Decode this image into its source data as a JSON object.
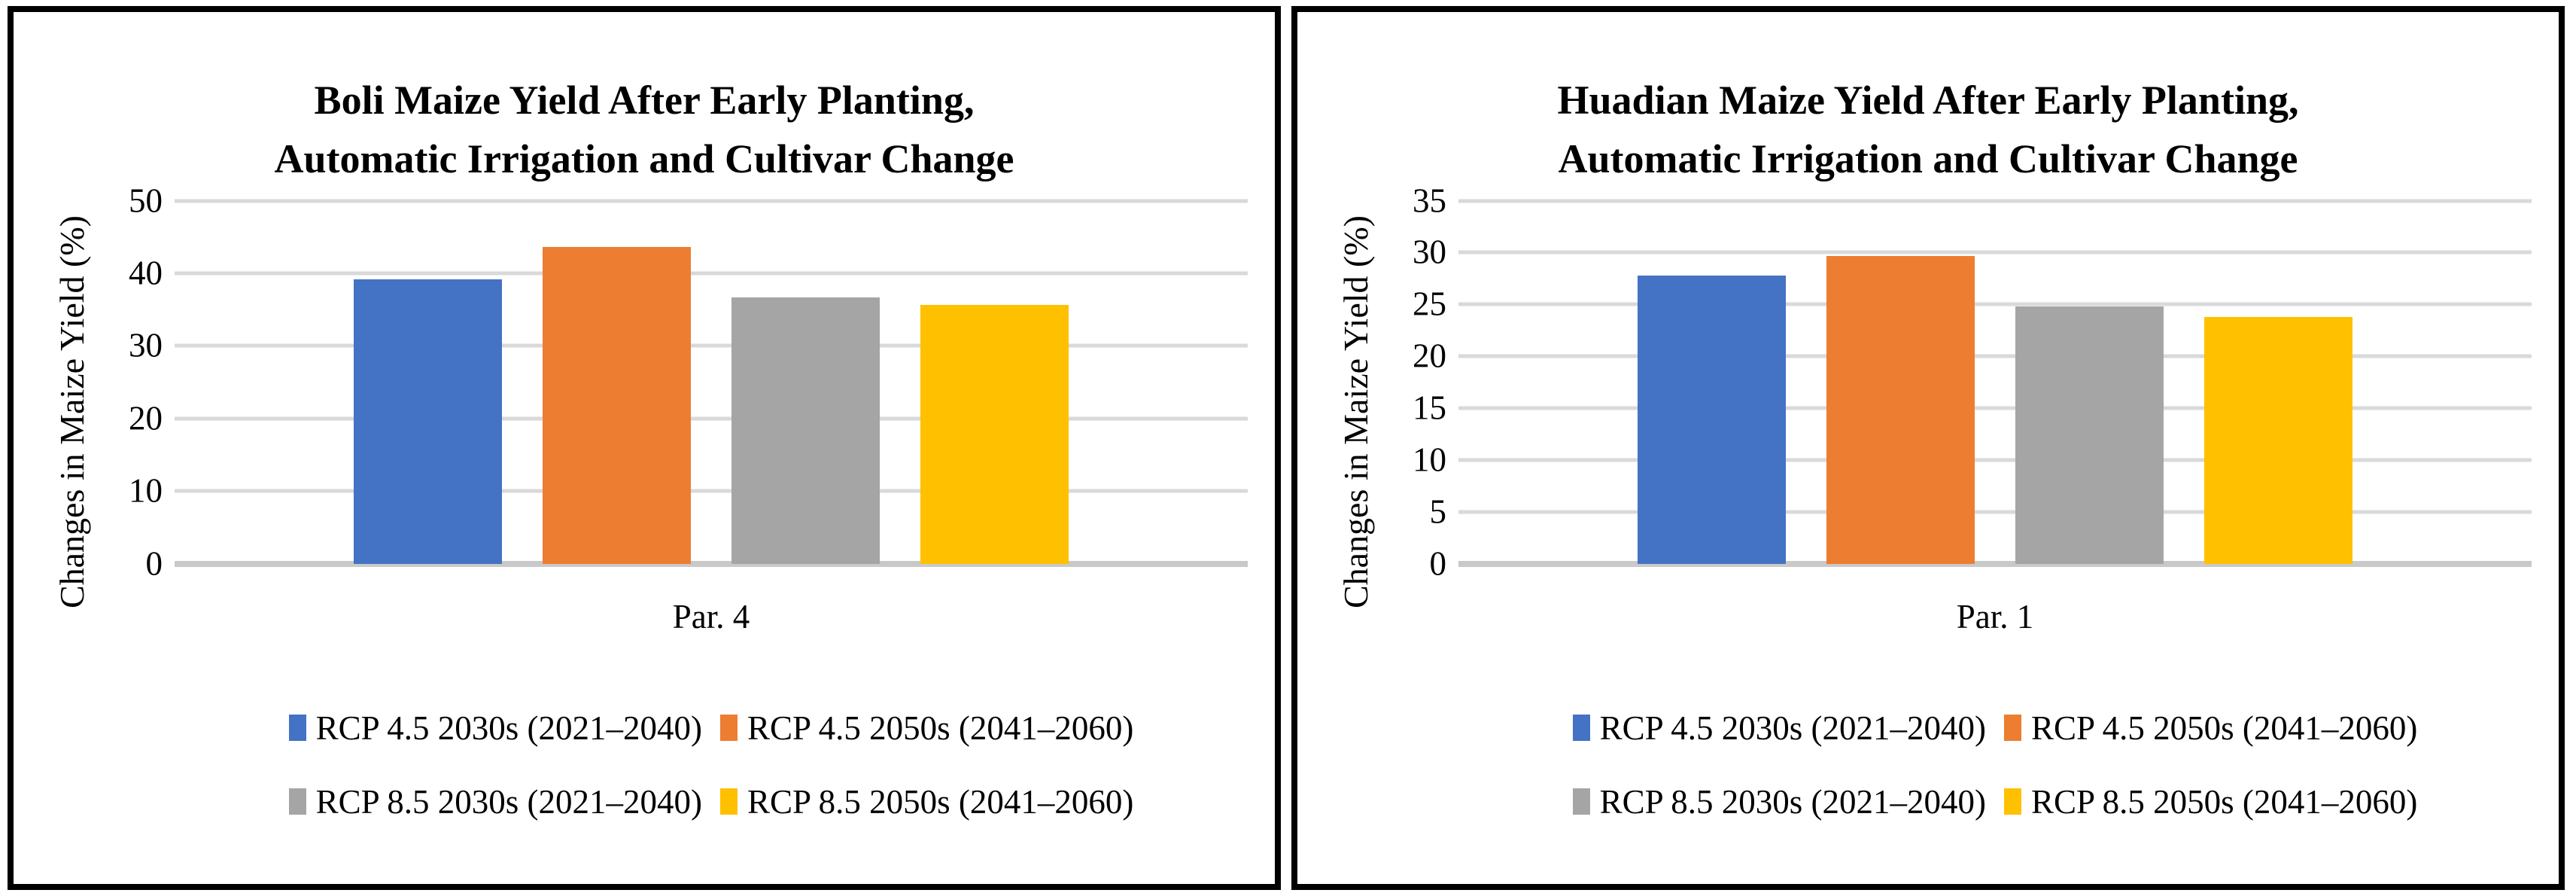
{
  "figure": {
    "description_visible_text_only": "Two side-by-side bar charts comparing maize yield changes under climate scenarios",
    "panel_count": 2
  },
  "styles": {
    "panel_border_color": "#000000",
    "background_color": "#FFFFFF",
    "grid_color": "#D9D9D9",
    "axis_line_color": "#C9C9C9",
    "text_color": "#000000",
    "series_colors": [
      "#4472C4",
      "#ED7D31",
      "#A5A5A5",
      "#FFC000"
    ]
  },
  "chart_data": [
    {
      "type": "bar",
      "title": "Boli Maize Yield After Early Planting, Automatic Irrigation and Cultivar Change",
      "title_lines": [
        "Boli Maize Yield After Early Planting,",
        "Automatic Irrigation and Cultivar Change"
      ],
      "xlabel": "Par. 4",
      "ylabel": "Changes in Maize Yield (%)",
      "categories": [
        "Par. 4"
      ],
      "ylim": [
        0,
        50
      ],
      "ytick_step": 10,
      "yticks": [
        0,
        10,
        20,
        30,
        40,
        50
      ],
      "grid": true,
      "legend_position": "bottom",
      "series": [
        {
          "name": "RCP 4.5 2030s (2021–2040)",
          "color": "#4472C4",
          "values": [
            39.2
          ]
        },
        {
          "name": "RCP 4.5 2050s (2041–2060)",
          "color": "#ED7D31",
          "values": [
            43.6
          ]
        },
        {
          "name": "RCP 8.5 2030s (2021–2040)",
          "color": "#A5A5A5",
          "values": [
            36.7
          ]
        },
        {
          "name": "RCP 8.5 2050s (2041–2060)",
          "color": "#FFC000",
          "values": [
            35.6
          ]
        }
      ]
    },
    {
      "type": "bar",
      "title": "Huadian Maize Yield After Early Planting, Automatic Irrigation and Cultivar Change",
      "title_lines": [
        "Huadian Maize Yield After Early Planting,",
        "Automatic Irrigation and Cultivar Change"
      ],
      "xlabel": "Par. 1",
      "ylabel": "Changes in Maize Yield (%)",
      "categories": [
        "Par. 1"
      ],
      "ylim": [
        0,
        35
      ],
      "ytick_step": 5,
      "yticks": [
        0,
        5,
        10,
        15,
        20,
        25,
        30,
        35
      ],
      "grid": true,
      "legend_position": "bottom",
      "series": [
        {
          "name": "RCP 4.5 2030s (2021–2040)",
          "color": "#4472C4",
          "values": [
            27.8
          ]
        },
        {
          "name": "RCP 4.5 2050s (2041–2060)",
          "color": "#ED7D31",
          "values": [
            29.7
          ]
        },
        {
          "name": "RCP 8.5 2030s (2021–2040)",
          "color": "#A5A5A5",
          "values": [
            24.8
          ]
        },
        {
          "name": "RCP 8.5 2050s (2041–2060)",
          "color": "#FFC000",
          "values": [
            23.8
          ]
        }
      ]
    }
  ]
}
